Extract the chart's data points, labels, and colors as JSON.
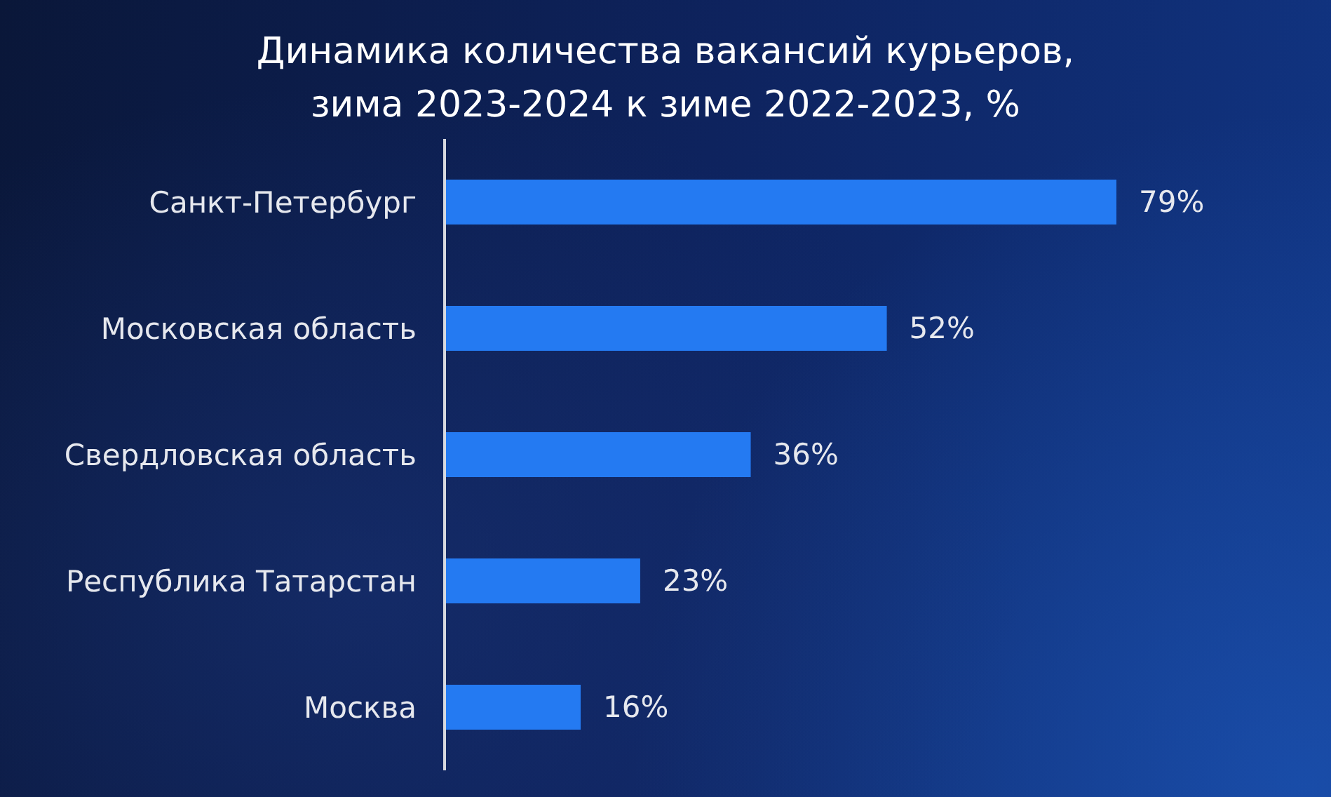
{
  "chart_data": {
    "type": "bar",
    "orientation": "horizontal",
    "title": "Динамика количества вакансий курьеров,\nзима 2023-2024 к зиме 2022-2023, %",
    "categories": [
      "Санкт-Петербург",
      "Московская область",
      "Свердловская область",
      "Республика Татарстан",
      "Москва"
    ],
    "values": [
      79,
      52,
      36,
      23,
      16
    ],
    "value_labels": [
      "79%",
      "52%",
      "36%",
      "23%",
      "16%"
    ],
    "color": "#247af2",
    "tick_labels": "y"
  }
}
